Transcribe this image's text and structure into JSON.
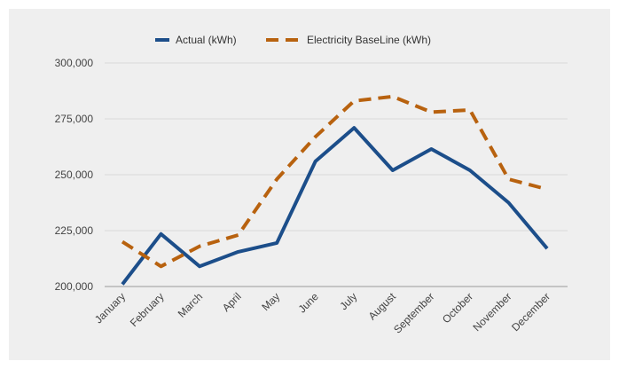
{
  "chart_data": {
    "type": "line",
    "categories": [
      "January",
      "February",
      "March",
      "April",
      "May",
      "June",
      "July",
      "August",
      "September",
      "October",
      "November",
      "December"
    ],
    "series": [
      {
        "name": "Actual (kWh)",
        "values": [
          201000,
          223500,
          209000,
          215500,
          219500,
          256000,
          271000,
          252000,
          261500,
          252000,
          237500,
          217000
        ],
        "color": "#1c4e8a",
        "style": "solid"
      },
      {
        "name": "Electricity BaseLine (kWh)",
        "values": [
          220000,
          209000,
          218000,
          223000,
          248000,
          267000,
          283000,
          285000,
          278000,
          279000,
          248000,
          243500
        ],
        "color": "#b8620f",
        "style": "dashed"
      }
    ],
    "yticks": [
      "200,000",
      "225,000",
      "250,000",
      "275,000",
      "300,000"
    ],
    "ytick_values": [
      200000,
      225000,
      250000,
      275000,
      300000
    ],
    "ylim": [
      200000,
      300000
    ],
    "title": "",
    "xlabel": "",
    "ylabel": "",
    "grid": true,
    "legend_position": "top"
  },
  "colors": {
    "background": "#efefef",
    "grid": "#d9d9d9",
    "axis": "#999999"
  }
}
